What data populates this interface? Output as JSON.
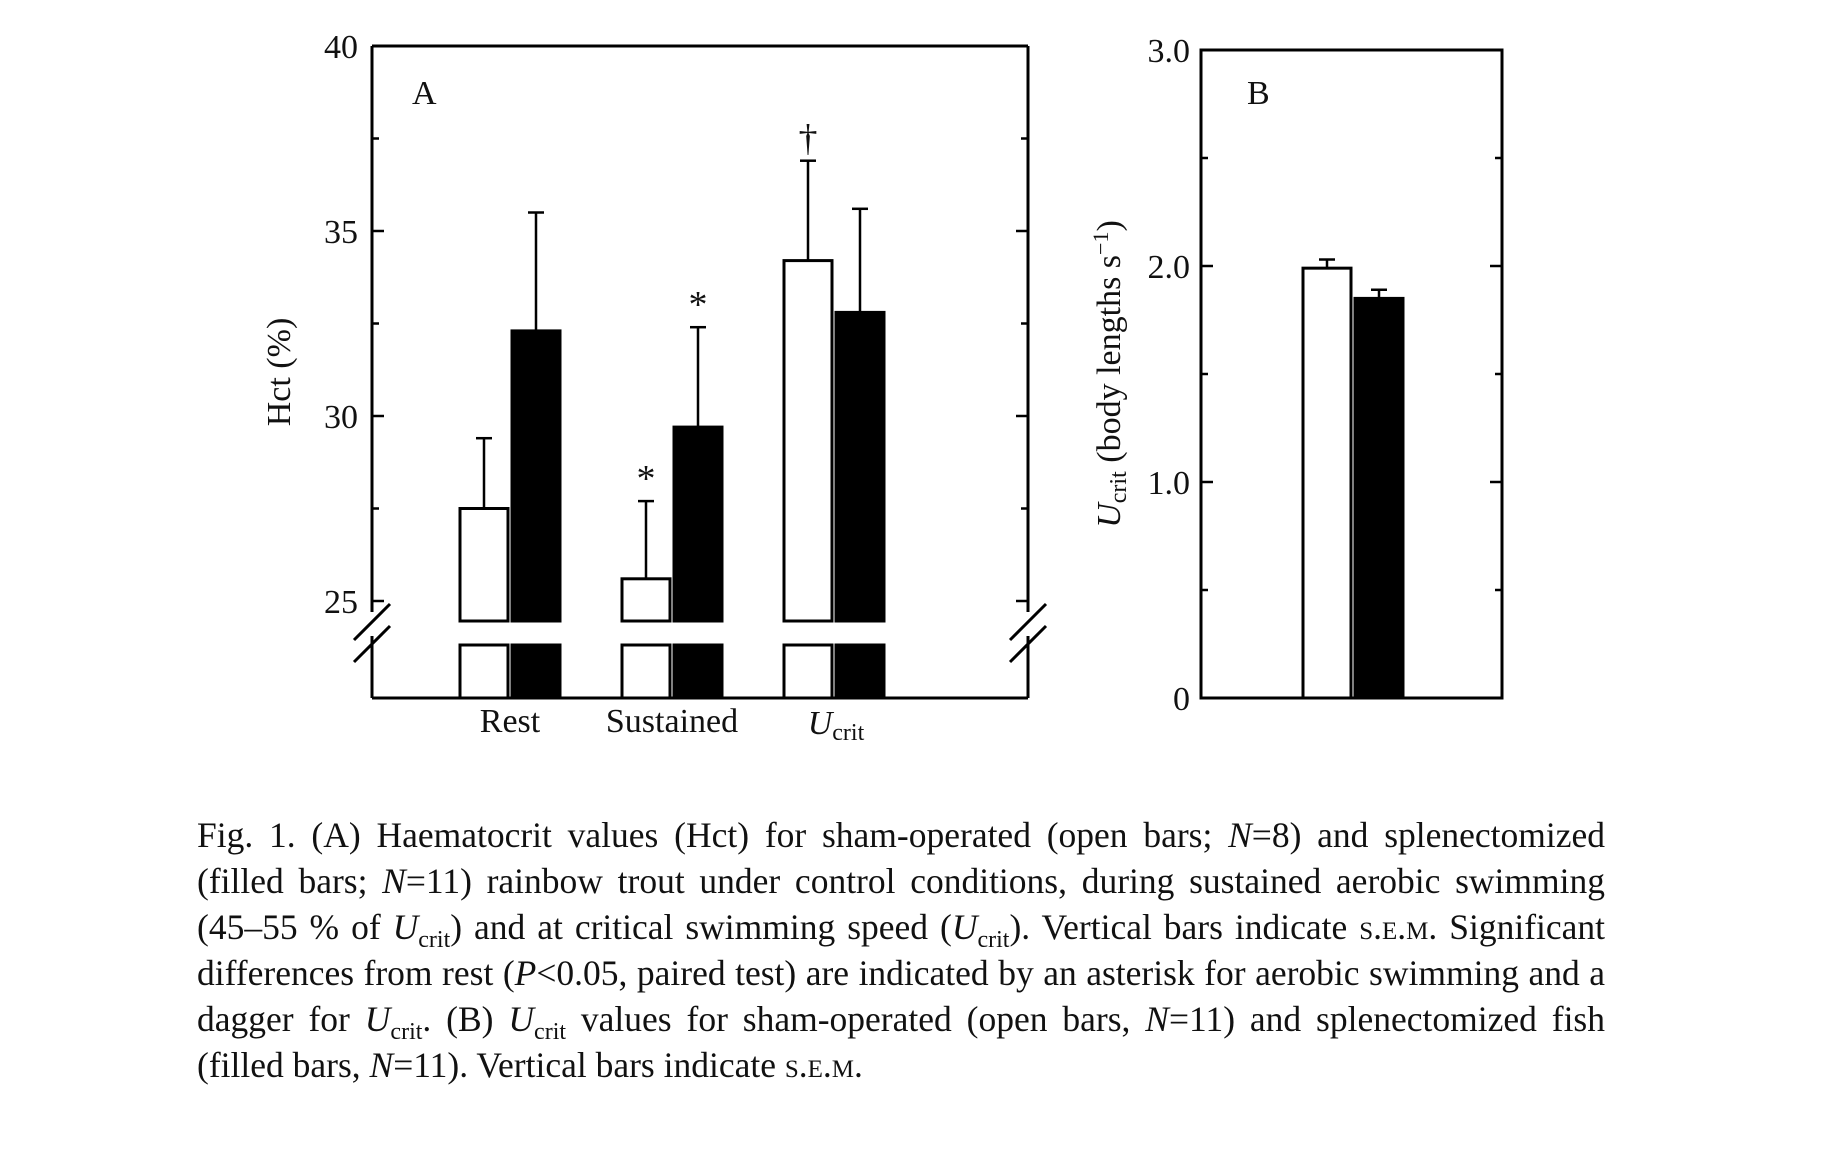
{
  "chart_data": [
    {
      "type": "bar",
      "panel": "A",
      "categories": [
        "Rest",
        "Sustained",
        "U_crit"
      ],
      "category_labels": [
        "Rest",
        "Sustained",
        "Ucrit"
      ],
      "ylabel": "Hct (%)",
      "ylim": [
        24,
        40
      ],
      "y_axis_break": true,
      "yticks": [
        25,
        30,
        35,
        40
      ],
      "series": [
        {
          "fill": "open",
          "values": [
            27.5,
            25.6,
            34.2
          ],
          "sem": [
            1.9,
            2.1,
            2.7
          ]
        },
        {
          "fill": "filled",
          "values": [
            32.3,
            29.7,
            32.8
          ],
          "sem": [
            3.2,
            2.7,
            2.8
          ]
        }
      ],
      "annotations": [
        {
          "category": "Sustained",
          "series": "open",
          "symbol": "*"
        },
        {
          "category": "Sustained",
          "series": "filled",
          "symbol": "*"
        },
        {
          "category": "U_crit",
          "series": "open",
          "symbol": "†"
        }
      ],
      "colors": {
        "open": "#ffffff",
        "filled": "#000000",
        "outline": "#000000"
      }
    },
    {
      "type": "bar",
      "panel": "B",
      "categories": [
        ""
      ],
      "ylabel": "Ucrit (body lengths s⁻¹)",
      "ylim": [
        0,
        3.0
      ],
      "yticks": [
        "0",
        "1.0",
        "2.0",
        "3.0"
      ],
      "series": [
        {
          "fill": "open",
          "values": [
            1.99
          ],
          "sem": [
            0.04
          ]
        },
        {
          "fill": "filled",
          "values": [
            1.85
          ],
          "sem": [
            0.04
          ]
        }
      ]
    }
  ],
  "caption": {
    "parts": [
      {
        "t": "Fig. 1. (A) Haematocrit values (Hct) for sham-operated (open bars; "
      },
      {
        "t": "N",
        "s": "i"
      },
      {
        "t": "=8) and splenectomized (filled bars; "
      },
      {
        "t": "N",
        "s": "i"
      },
      {
        "t": "=11) rainbow trout under control conditions, during sustained aerobic swimming (45–55 % of "
      },
      {
        "t": "U",
        "s": "i"
      },
      {
        "t": "crit",
        "s": "sub"
      },
      {
        "t": ") and at critical swimming speed ("
      },
      {
        "t": "U",
        "s": "i"
      },
      {
        "t": "crit",
        "s": "sub"
      },
      {
        "t": "). Vertical bars indicate "
      },
      {
        "t": "s.e.m",
        "s": "sc"
      },
      {
        "t": ". Significant differences from rest ("
      },
      {
        "t": "P",
        "s": "i"
      },
      {
        "t": "<0.05, paired test) are indicated by an asterisk for aerobic swimming and a dagger for "
      },
      {
        "t": "U",
        "s": "i"
      },
      {
        "t": "crit",
        "s": "sub"
      },
      {
        "t": ". (B) "
      },
      {
        "t": "U",
        "s": "i"
      },
      {
        "t": "crit",
        "s": "sub"
      },
      {
        "t": " values for sham-operated (open bars, "
      },
      {
        "t": "N",
        "s": "i"
      },
      {
        "t": "=11) and splenectomized fish (filled bars, "
      },
      {
        "t": "N",
        "s": "i"
      },
      {
        "t": "=11). Vertical bars indicate "
      },
      {
        "t": "s.e.m",
        "s": "sc"
      },
      {
        "t": "."
      }
    ]
  }
}
